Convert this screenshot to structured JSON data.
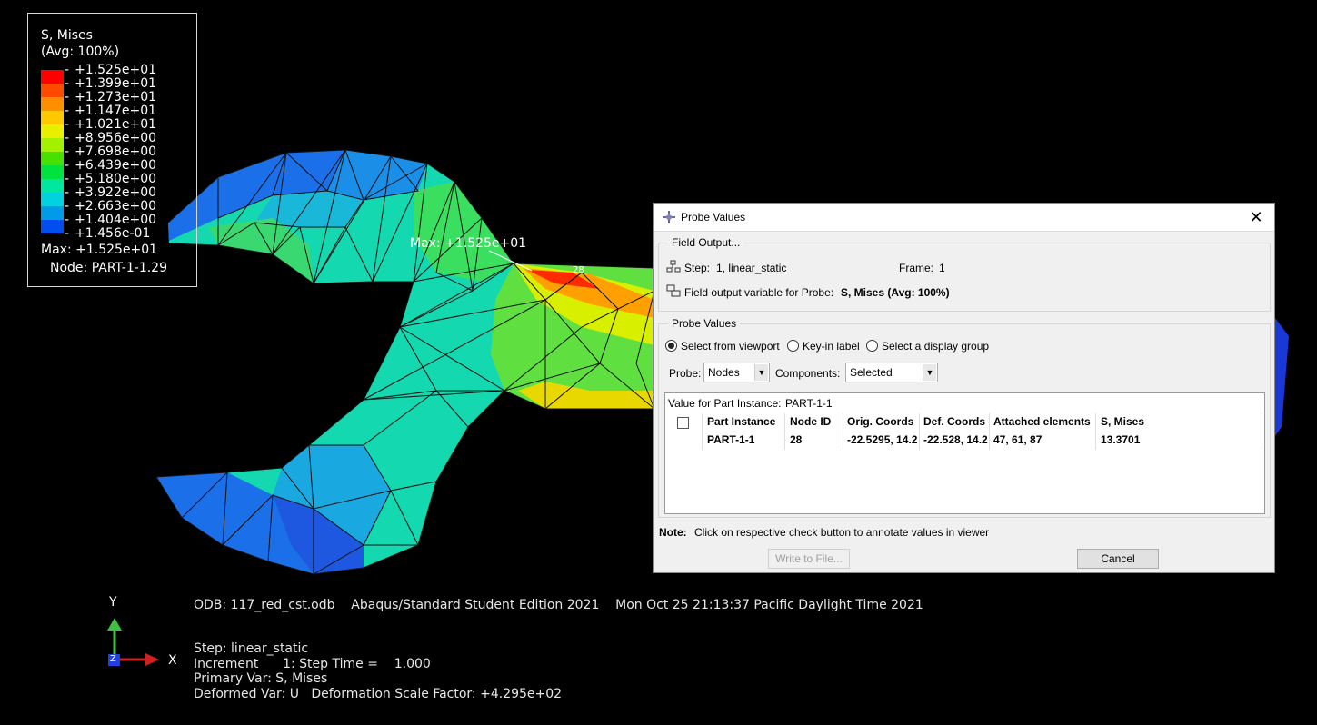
{
  "legend": {
    "title": "S, Mises",
    "subtitle": "(Avg: 100%)",
    "values": [
      "+1.525e+01",
      "+1.399e+01",
      "+1.273e+01",
      "+1.147e+01",
      "+1.021e+01",
      "+8.956e+00",
      "+7.698e+00",
      "+6.439e+00",
      "+5.180e+00",
      "+3.922e+00",
      "+2.663e+00",
      "+1.404e+00",
      "+1.456e-01"
    ],
    "colors": [
      "#ff0000",
      "#ff4a00",
      "#ff8f00",
      "#ffc800",
      "#e8f000",
      "#a3f000",
      "#48e000",
      "#00e23d",
      "#00e8a0",
      "#00d2df",
      "#009ae8",
      "#004ef0",
      "#0000f2"
    ],
    "max_label": "Max: +1.525e+01",
    "node_label": "Node: PART-1-1.29"
  },
  "viewport": {
    "max_annotation": "Max: +1.525e+01",
    "probe_marker": "28",
    "info_line": "ODB: 117_red_cst.odb    Abaqus/Standard Student Edition 2021    Mon Oct 25 21:13:37 Pacific Daylight Time 2021",
    "step_line": "Step: linear_static",
    "increment_line": "Increment      1: Step Time =    1.000",
    "primary_line": "Primary Var: S, Mises",
    "deformed_line": "Deformed Var: U   Deformation Scale Factor: +4.295e+02",
    "triad": {
      "y": "Y",
      "x": "X",
      "z": "Z"
    }
  },
  "dialog": {
    "title": "Probe Values",
    "field_output_group": "Field Output...",
    "step_label": "Step:",
    "step_value": "1, linear_static",
    "frame_label": "Frame:",
    "frame_value": "1",
    "field_var_label": "Field output variable for Probe:",
    "field_var_value": "S, Mises (Avg: 100%)",
    "probe_values_group": "Probe Values",
    "radio_viewport": "Select from viewport",
    "radio_keyin": "Key-in label",
    "radio_display_group": "Select a display group",
    "probe_label": "Probe:",
    "probe_value": "Nodes",
    "components_label": "Components:",
    "components_value": "Selected",
    "table_caption": "Value for Part Instance:",
    "table_caption_value": "PART-1-1",
    "columns": [
      "Part Instance",
      "Node ID",
      "Orig. Coords",
      "Def. Coords",
      "Attached elements",
      "S, Mises"
    ],
    "row": [
      "PART-1-1",
      "28",
      "-22.5295, 14.2",
      "-22.528, 14.2",
      "47, 61, 87",
      "13.3701"
    ],
    "note_label": "Note:",
    "note_text": "Click on respective check button to annotate values in viewer",
    "write_button": "Write to File...",
    "cancel_button": "Cancel"
  }
}
